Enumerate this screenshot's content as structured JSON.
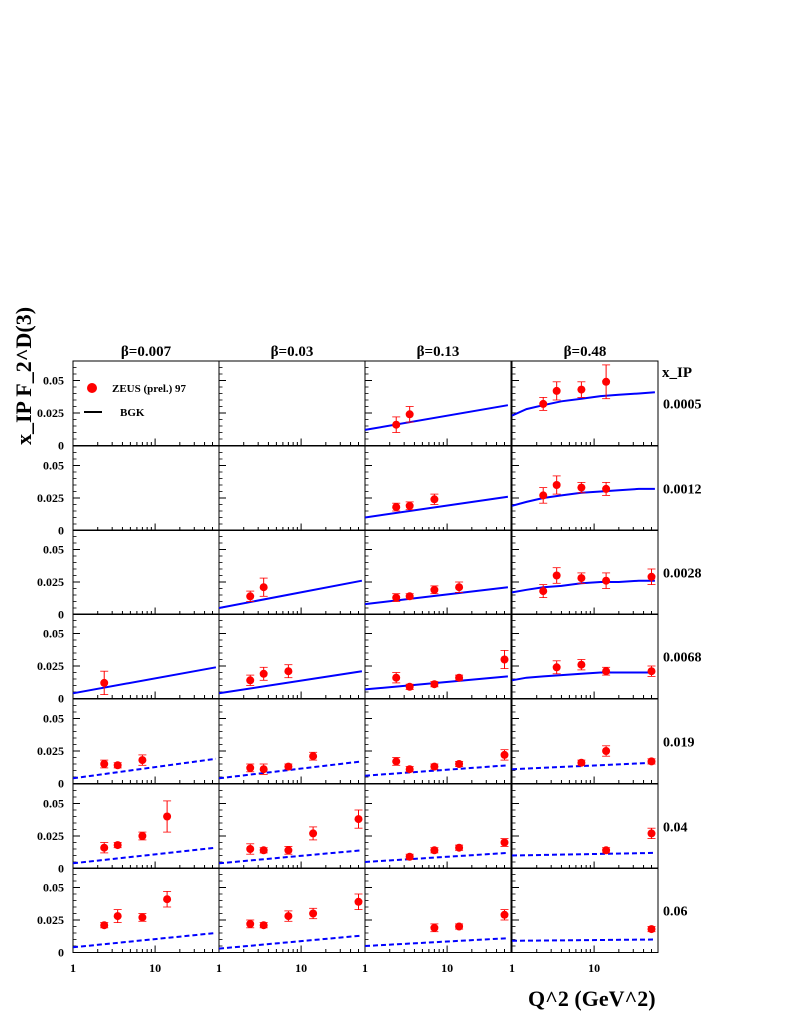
{
  "chart_data": {
    "type": "scatter",
    "title": "",
    "ylabel": "x_IP F_2^D(3)",
    "xlabel": "Q^2 (GeV^2)",
    "x_scale": "log",
    "xlim": [
      1,
      60
    ],
    "ylim": [
      0,
      0.065
    ],
    "x_ticks": [
      "1",
      "10"
    ],
    "y_ticks": [
      "0",
      "0.025",
      "0.05"
    ],
    "row_header": "x_IP",
    "legend": [
      {
        "name": "ZEUS (prel.) 97",
        "marker": "circle",
        "color": "#ff0000"
      },
      {
        "name": "BGK",
        "marker": "line",
        "color": "#000000"
      }
    ],
    "colors": {
      "data": "#ff0000",
      "curve": "#0000ff"
    },
    "betas": [
      "β=0.007",
      "β=0.03",
      "β=0.13",
      "β=0.48"
    ],
    "xips": [
      "0.0005",
      "0.0012",
      "0.0028",
      "0.0068",
      "0.019",
      "0.04",
      "0.06"
    ],
    "panels": [
      [
        {
          "points": [],
          "curve": null
        },
        {
          "points": [],
          "curve": null
        },
        {
          "points": [],
          "curve": null
        },
        {
          "points": [
            [
              2.4,
              0.012,
              0.009
            ]
          ],
          "curve": {
            "style": "solid",
            "x": [
              1,
              55
            ],
            "y": [
              0.004,
              0.024
            ]
          }
        },
        {
          "points": [
            [
              2.4,
              0.015,
              0.003
            ],
            [
              3.5,
              0.014,
              0.002
            ],
            [
              7,
              0.018,
              0.004
            ]
          ],
          "curve": {
            "style": "dashed",
            "x": [
              1,
              55
            ],
            "y": [
              0.004,
              0.019
            ]
          }
        },
        {
          "points": [
            [
              2.4,
              0.016,
              0.004
            ],
            [
              3.5,
              0.018,
              0.002
            ],
            [
              7,
              0.025,
              0.003
            ],
            [
              14,
              0.04,
              0.012
            ]
          ],
          "curve": {
            "style": "dashed",
            "x": [
              1,
              55
            ],
            "y": [
              0.004,
              0.016
            ]
          }
        },
        {
          "points": [
            [
              2.4,
              0.021,
              0.002
            ],
            [
              3.5,
              0.028,
              0.005
            ],
            [
              7,
              0.027,
              0.003
            ],
            [
              14,
              0.041,
              0.006
            ]
          ],
          "curve": {
            "style": "dashed",
            "x": [
              1,
              55
            ],
            "y": [
              0.004,
              0.015
            ]
          }
        }
      ],
      [
        {
          "points": [],
          "curve": null
        },
        {
          "points": [],
          "curve": null
        },
        {
          "points": [
            [
              2.4,
              0.014,
              0.004
            ],
            [
              3.5,
              0.021,
              0.007
            ]
          ],
          "curve": {
            "style": "solid",
            "x": [
              1,
              55
            ],
            "y": [
              0.005,
              0.026
            ]
          }
        },
        {
          "points": [
            [
              2.4,
              0.014,
              0.004
            ],
            [
              3.5,
              0.019,
              0.005
            ],
            [
              7,
              0.021,
              0.005
            ]
          ],
          "curve": {
            "style": "solid",
            "x": [
              1,
              55
            ],
            "y": [
              0.004,
              0.021
            ]
          }
        },
        {
          "points": [
            [
              2.4,
              0.012,
              0.003
            ],
            [
              3.5,
              0.011,
              0.004
            ],
            [
              7,
              0.013,
              0.002
            ],
            [
              14,
              0.021,
              0.003
            ]
          ],
          "curve": {
            "style": "dashed",
            "x": [
              1,
              55
            ],
            "y": [
              0.004,
              0.017
            ]
          }
        },
        {
          "points": [
            [
              2.4,
              0.015,
              0.004
            ],
            [
              3.5,
              0.014,
              0.002
            ],
            [
              7,
              0.014,
              0.003
            ],
            [
              14,
              0.027,
              0.005
            ],
            [
              50,
              0.038,
              0.007
            ]
          ],
          "curve": {
            "style": "dashed",
            "x": [
              1,
              55
            ],
            "y": [
              0.004,
              0.014
            ]
          }
        },
        {
          "points": [
            [
              2.4,
              0.022,
              0.003
            ],
            [
              3.5,
              0.021,
              0.002
            ],
            [
              7,
              0.028,
              0.004
            ],
            [
              14,
              0.03,
              0.004
            ],
            [
              50,
              0.039,
              0.006
            ]
          ],
          "curve": {
            "style": "dashed",
            "x": [
              1,
              55
            ],
            "y": [
              0.003,
              0.013
            ]
          }
        }
      ],
      [
        {
          "points": [
            [
              2.4,
              0.016,
              0.006
            ],
            [
              3.5,
              0.024,
              0.006
            ]
          ],
          "curve": {
            "style": "solid",
            "x": [
              1,
              55
            ],
            "y": [
              0.012,
              0.031
            ]
          }
        },
        {
          "points": [
            [
              2.4,
              0.018,
              0.003
            ],
            [
              3.5,
              0.019,
              0.003
            ],
            [
              7,
              0.024,
              0.004
            ]
          ],
          "curve": {
            "style": "solid",
            "x": [
              1,
              55
            ],
            "y": [
              0.01,
              0.026
            ]
          }
        },
        {
          "points": [
            [
              2.4,
              0.013,
              0.003
            ],
            [
              3.5,
              0.014,
              0.002
            ],
            [
              7,
              0.019,
              0.003
            ],
            [
              14,
              0.021,
              0.004
            ]
          ],
          "curve": {
            "style": "solid",
            "x": [
              1,
              55
            ],
            "y": [
              0.008,
              0.021
            ]
          }
        },
        {
          "points": [
            [
              2.4,
              0.016,
              0.004
            ],
            [
              3.5,
              0.009,
              0.002
            ],
            [
              7,
              0.011,
              0.002
            ],
            [
              14,
              0.016,
              0.002
            ],
            [
              50,
              0.03,
              0.007
            ]
          ],
          "curve": {
            "style": "solid",
            "x": [
              1,
              55
            ],
            "y": [
              0.007,
              0.017
            ]
          }
        },
        {
          "points": [
            [
              2.4,
              0.017,
              0.003
            ],
            [
              3.5,
              0.011,
              0.002
            ],
            [
              7,
              0.013,
              0.002
            ],
            [
              14,
              0.015,
              0.002
            ],
            [
              50,
              0.022,
              0.004
            ]
          ],
          "curve": {
            "style": "dashed",
            "x": [
              1,
              55
            ],
            "y": [
              0.006,
              0.014
            ]
          }
        },
        {
          "points": [
            [
              3.5,
              0.009,
              0.002
            ],
            [
              7,
              0.014,
              0.002
            ],
            [
              14,
              0.016,
              0.002
            ],
            [
              50,
              0.02,
              0.003
            ]
          ],
          "curve": {
            "style": "dashed",
            "x": [
              1,
              55
            ],
            "y": [
              0.005,
              0.012
            ]
          }
        },
        {
          "points": [
            [
              7,
              0.019,
              0.003
            ],
            [
              14,
              0.02,
              0.002
            ],
            [
              50,
              0.029,
              0.004
            ]
          ],
          "curve": {
            "style": "dashed",
            "x": [
              1,
              55
            ],
            "y": [
              0.005,
              0.011
            ]
          }
        }
      ],
      [
        {
          "points": [
            [
              2.4,
              0.032,
              0.005
            ],
            [
              3.5,
              0.042,
              0.007
            ],
            [
              7,
              0.043,
              0.006
            ],
            [
              14,
              0.049,
              0.013
            ]
          ],
          "curve": {
            "style": "solid",
            "x": [
              1,
              1.5,
              2.4,
              4,
              7,
              12,
              20,
              35,
              55
            ],
            "y": [
              0.023,
              0.028,
              0.031,
              0.034,
              0.036,
              0.038,
              0.039,
              0.04,
              0.041
            ]
          }
        },
        {
          "points": [
            [
              2.4,
              0.027,
              0.006
            ],
            [
              3.5,
              0.035,
              0.007
            ],
            [
              7,
              0.033,
              0.004
            ],
            [
              14,
              0.032,
              0.005
            ]
          ],
          "curve": {
            "style": "solid",
            "x": [
              1,
              1.5,
              2.4,
              4,
              7,
              12,
              20,
              35,
              55
            ],
            "y": [
              0.019,
              0.022,
              0.025,
              0.027,
              0.029,
              0.03,
              0.031,
              0.032,
              0.032
            ]
          }
        },
        {
          "points": [
            [
              2.4,
              0.018,
              0.005
            ],
            [
              3.5,
              0.03,
              0.006
            ],
            [
              7,
              0.028,
              0.004
            ],
            [
              14,
              0.026,
              0.006
            ],
            [
              50,
              0.029,
              0.006
            ]
          ],
          "curve": {
            "style": "solid",
            "x": [
              1,
              1.5,
              2.4,
              4,
              7,
              12,
              20,
              35,
              55
            ],
            "y": [
              0.017,
              0.019,
              0.021,
              0.022,
              0.024,
              0.025,
              0.025,
              0.026,
              0.026
            ]
          }
        },
        {
          "points": [
            [
              3.5,
              0.024,
              0.005
            ],
            [
              7,
              0.026,
              0.004
            ],
            [
              14,
              0.021,
              0.003
            ],
            [
              50,
              0.021,
              0.004
            ]
          ],
          "curve": {
            "style": "solid",
            "x": [
              1,
              1.5,
              2.4,
              4,
              7,
              12,
              20,
              35,
              55
            ],
            "y": [
              0.014,
              0.016,
              0.017,
              0.018,
              0.019,
              0.02,
              0.02,
              0.02,
              0.02
            ]
          }
        },
        {
          "points": [
            [
              7,
              0.016,
              0.002
            ],
            [
              14,
              0.025,
              0.004
            ],
            [
              50,
              0.017,
              0.002
            ]
          ],
          "curve": {
            "style": "dashed",
            "x": [
              1,
              55
            ],
            "y": [
              0.011,
              0.016
            ]
          }
        },
        {
          "points": [
            [
              14,
              0.014,
              0.002
            ],
            [
              50,
              0.027,
              0.004
            ]
          ],
          "curve": {
            "style": "dashed",
            "x": [
              1,
              55
            ],
            "y": [
              0.01,
              0.012
            ]
          }
        },
        {
          "points": [
            [
              50,
              0.018,
              0.002
            ]
          ],
          "curve": {
            "style": "dashed",
            "x": [
              1,
              55
            ],
            "y": [
              0.009,
              0.01
            ]
          }
        }
      ]
    ]
  }
}
